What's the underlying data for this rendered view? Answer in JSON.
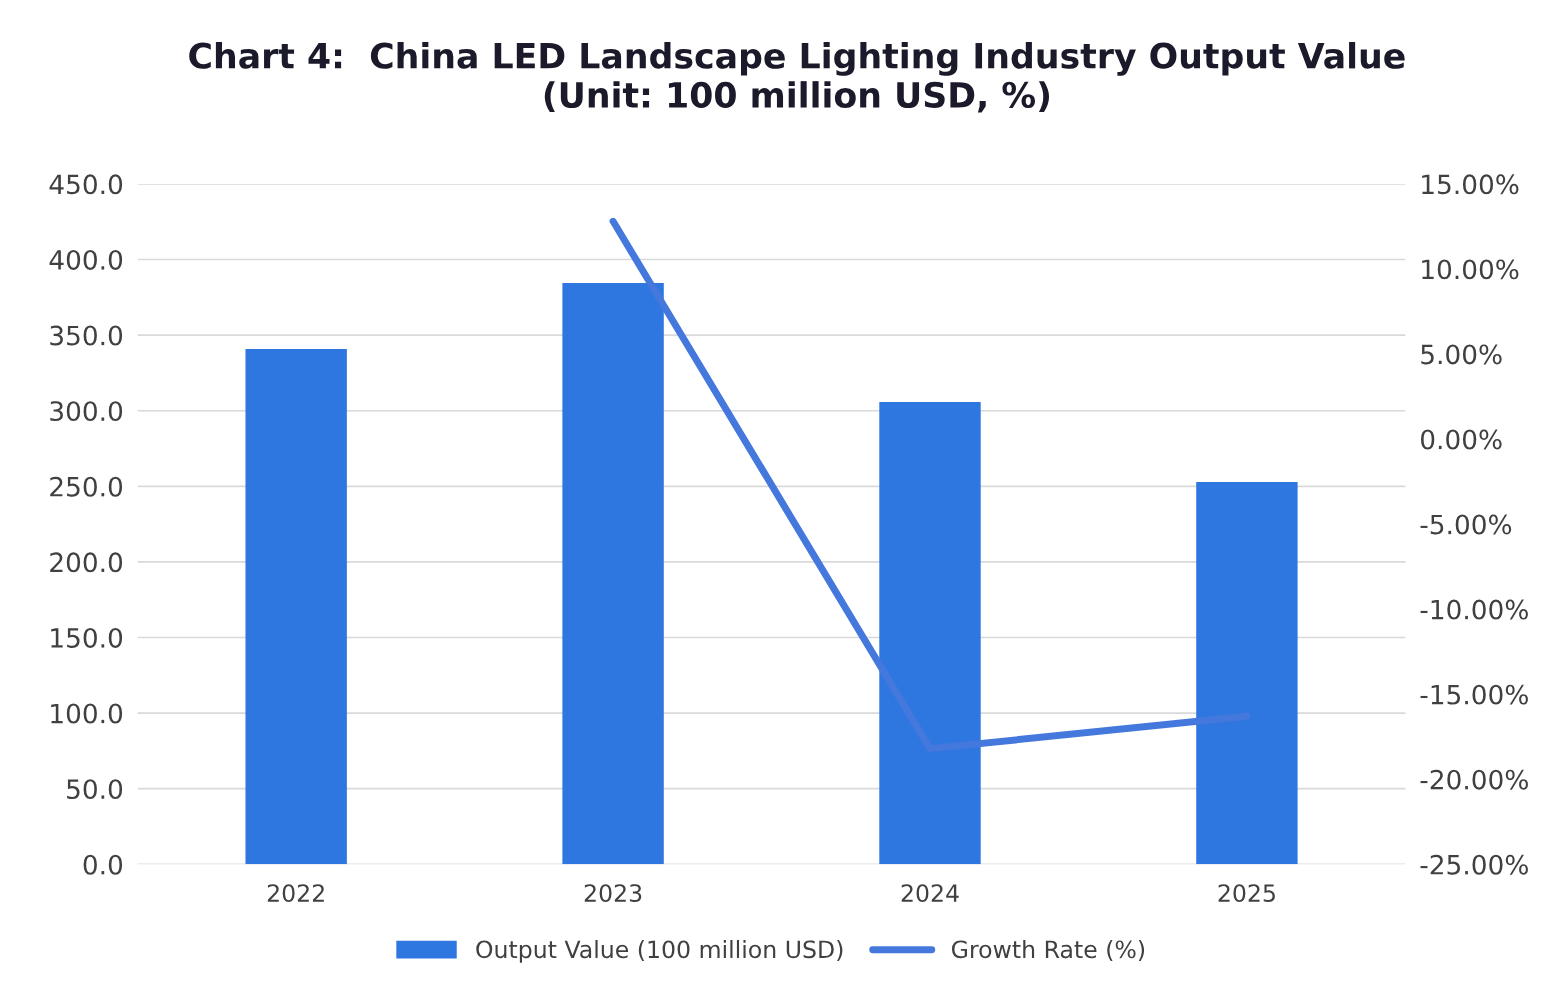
{
  "chart_data": {
    "type": "bar",
    "title": "Chart 4:  China LED Landscape Lighting Industry Output Value\n(Unit: 100 million USD, %)",
    "categories": [
      "2022",
      "2023",
      "2024",
      "2025"
    ],
    "series": [
      {
        "name": "Output Value (100 million USD)",
        "color": "#2f77e0",
        "values": [
          340.8,
          384.5,
          305.7,
          252.8
        ]
      },
      {
        "name": "Growth Rate (%)",
        "type": "line",
        "axis": "y2",
        "color": "#4478dc",
        "values": [
          null,
          12.8,
          -18.2,
          -16.3
        ]
      }
    ],
    "ylim": [
      0,
      450
    ],
    "yticks": [
      {
        "value": 0,
        "label": "0.0"
      },
      {
        "value": 50,
        "label": "50.0"
      },
      {
        "value": 100,
        "label": "100.0"
      },
      {
        "value": 150,
        "label": "150.0"
      },
      {
        "value": 200,
        "label": "200.0"
      },
      {
        "value": 250,
        "label": "250.0"
      },
      {
        "value": 300,
        "label": "300.0"
      },
      {
        "value": 350,
        "label": "350.0"
      },
      {
        "value": 400,
        "label": "400.0"
      },
      {
        "value": 450,
        "label": "450.0"
      }
    ],
    "y2lim": [
      -25,
      15
    ],
    "y2ticks": [
      {
        "value": -25,
        "label": "-25.00%"
      },
      {
        "value": -20,
        "label": "-20.00%"
      },
      {
        "value": -15,
        "label": "-15.00%"
      },
      {
        "value": -10,
        "label": "-10.00%"
      },
      {
        "value": -5,
        "label": "-5.00%"
      },
      {
        "value": 0,
        "label": "0.00%"
      },
      {
        "value": 5,
        "label": "5.00%"
      },
      {
        "value": 10,
        "label": "10.00%"
      },
      {
        "value": 15,
        "label": "15.00%"
      }
    ],
    "grid": "y",
    "legend": "bottom",
    "marker": "none",
    "line_style": "solid"
  }
}
